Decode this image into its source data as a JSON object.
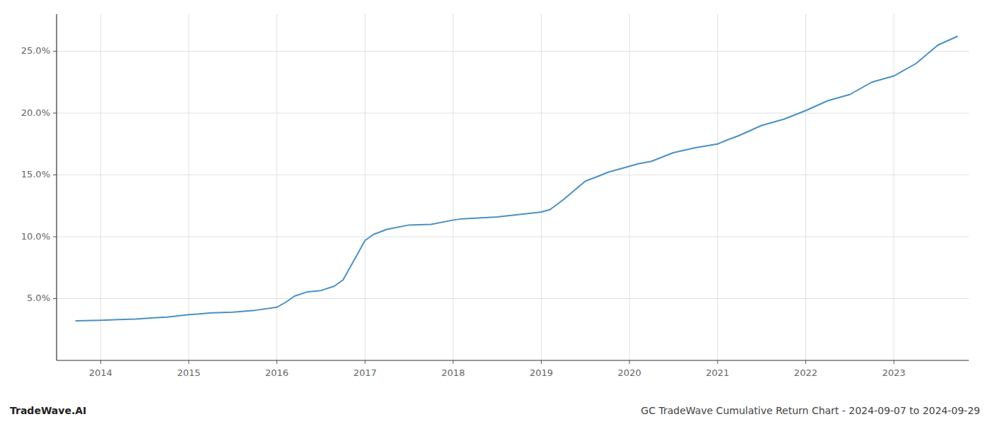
{
  "chart_data": {
    "type": "line",
    "title": "GC TradeWave Cumulative Return Chart - 2024-09-07 to 2024-09-29",
    "annotation": "TradeWave.AI",
    "color": "#4a90c4",
    "grid": true,
    "x": [
      2013.72,
      2014.0,
      2014.1,
      2014.2,
      2014.4,
      2014.6,
      2014.75,
      2015.0,
      2015.1,
      2015.25,
      2015.5,
      2015.75,
      2016.0,
      2016.1,
      2016.2,
      2016.35,
      2016.5,
      2016.65,
      2016.75,
      2017.0,
      2017.1,
      2017.25,
      2017.5,
      2017.75,
      2018.0,
      2018.1,
      2018.25,
      2018.5,
      2018.75,
      2019.0,
      2019.1,
      2019.25,
      2019.5,
      2019.65,
      2019.75,
      2020.0,
      2020.1,
      2020.25,
      2020.5,
      2020.75,
      2021.0,
      2021.1,
      2021.25,
      2021.5,
      2021.75,
      2022.0,
      2022.25,
      2022.5,
      2022.75,
      2023.0,
      2023.25,
      2023.5,
      2023.72
    ],
    "values": [
      3.2,
      3.25,
      3.27,
      3.3,
      3.35,
      3.45,
      3.5,
      3.7,
      3.75,
      3.85,
      3.9,
      4.05,
      4.3,
      4.7,
      5.2,
      5.55,
      5.65,
      6.0,
      6.5,
      9.7,
      10.2,
      10.6,
      10.95,
      11.0,
      11.35,
      11.45,
      11.5,
      11.6,
      11.8,
      12.0,
      12.2,
      13.0,
      14.5,
      14.9,
      15.2,
      15.7,
      15.9,
      16.1,
      16.8,
      17.2,
      17.5,
      17.8,
      18.2,
      19.0,
      19.5,
      20.2,
      21.0,
      21.5,
      22.5,
      23.0,
      24.0,
      25.5,
      26.2
    ],
    "xlim": [
      2013.5,
      2023.85
    ],
    "xticks": [
      2014,
      2015,
      2016,
      2017,
      2018,
      2019,
      2020,
      2021,
      2022,
      2023
    ],
    "ylim": [
      0,
      28
    ],
    "yticks": [
      {
        "value": 5.0,
        "label": "5.0%"
      },
      {
        "value": 10.0,
        "label": "10.0%"
      },
      {
        "value": 15.0,
        "label": "15.0%"
      },
      {
        "value": 20.0,
        "label": "20.0%"
      },
      {
        "value": 25.0,
        "label": "25.0%"
      }
    ]
  }
}
